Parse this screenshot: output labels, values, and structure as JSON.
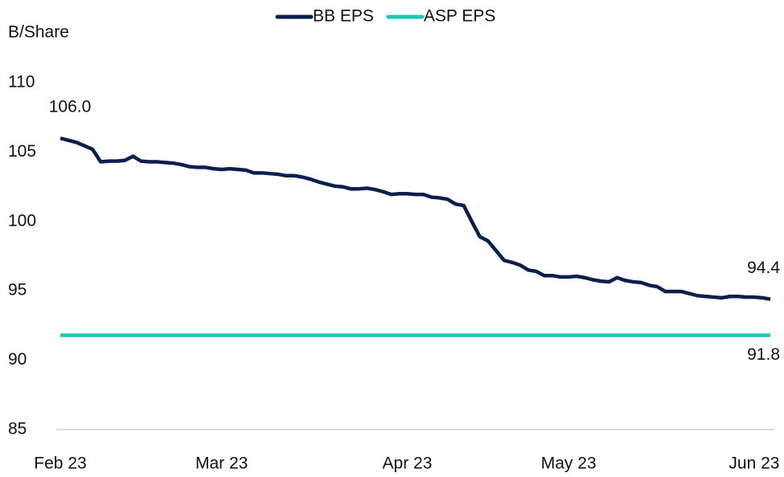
{
  "chart_data": {
    "type": "line",
    "y_label": "B/Share",
    "categories": [
      "Feb 23",
      null,
      null,
      null,
      null,
      null,
      null,
      null,
      null,
      null,
      null,
      null,
      null,
      null,
      null,
      null,
      null,
      null,
      null,
      null,
      "Mar 23",
      null,
      null,
      null,
      null,
      null,
      null,
      null,
      null,
      null,
      null,
      null,
      null,
      null,
      null,
      null,
      null,
      null,
      null,
      null,
      null,
      null,
      null,
      "Apr 23",
      null,
      null,
      null,
      null,
      null,
      null,
      null,
      null,
      null,
      null,
      null,
      null,
      null,
      null,
      null,
      null,
      null,
      null,
      null,
      "May 23",
      null,
      null,
      null,
      null,
      null,
      null,
      null,
      null,
      null,
      null,
      null,
      null,
      null,
      null,
      null,
      null,
      null,
      null,
      null,
      null,
      null,
      null,
      "Jun 23",
      null,
      null
    ],
    "series": [
      {
        "name": "BB EPS",
        "color": "#0b1f4f",
        "values": [
          106.0,
          105.85,
          105.7,
          105.45,
          105.2,
          104.3,
          104.35,
          104.35,
          104.4,
          104.7,
          104.35,
          104.3,
          104.3,
          104.25,
          104.2,
          104.1,
          103.95,
          103.9,
          103.9,
          103.8,
          103.75,
          103.8,
          103.75,
          103.7,
          103.5,
          103.5,
          103.45,
          103.4,
          103.3,
          103.3,
          103.2,
          103.05,
          102.85,
          102.7,
          102.55,
          102.5,
          102.35,
          102.35,
          102.4,
          102.3,
          102.15,
          101.95,
          102.0,
          102.0,
          101.95,
          101.95,
          101.75,
          101.7,
          101.6,
          101.25,
          101.15,
          100.0,
          98.9,
          98.6,
          97.9,
          97.2,
          97.05,
          96.85,
          96.5,
          96.4,
          96.1,
          96.1,
          96.0,
          96.0,
          96.05,
          95.95,
          95.8,
          95.7,
          95.65,
          95.95,
          95.75,
          95.65,
          95.6,
          95.4,
          95.3,
          94.95,
          94.95,
          94.95,
          94.8,
          94.65,
          94.6,
          94.55,
          94.5,
          94.6,
          94.6,
          94.55,
          94.55,
          94.5,
          94.4
        ],
        "value_labels": [
          "106.0",
          null,
          null,
          null,
          null,
          null,
          null,
          null,
          null,
          null,
          null,
          null,
          null,
          null,
          null,
          null,
          null,
          null,
          null,
          null,
          null,
          null,
          null,
          null,
          null,
          null,
          null,
          null,
          null,
          null,
          null,
          null,
          null,
          null,
          null,
          null,
          null,
          null,
          null,
          null,
          null,
          null,
          null,
          null,
          null,
          null,
          null,
          null,
          null,
          null,
          null,
          null,
          null,
          null,
          null,
          null,
          null,
          null,
          null,
          null,
          null,
          null,
          null,
          null,
          null,
          null,
          null,
          null,
          null,
          null,
          null,
          null,
          null,
          null,
          null,
          null,
          null,
          null,
          null,
          null,
          null,
          null,
          null,
          null,
          null,
          null,
          null,
          null,
          "94.4"
        ]
      },
      {
        "name": "ASP EPS",
        "color": "#1cc7b5",
        "values": [
          91.8,
          91.8,
          91.8,
          91.8,
          91.8,
          91.8,
          91.8,
          91.8,
          91.8,
          91.8,
          91.8,
          91.8,
          91.8,
          91.8,
          91.8,
          91.8,
          91.8,
          91.8,
          91.8,
          91.8,
          91.8,
          91.8,
          91.8,
          91.8,
          91.8,
          91.8,
          91.8,
          91.8,
          91.8,
          91.8,
          91.8,
          91.8,
          91.8,
          91.8,
          91.8,
          91.8,
          91.8,
          91.8,
          91.8,
          91.8,
          91.8,
          91.8,
          91.8,
          91.8,
          91.8,
          91.8,
          91.8,
          91.8,
          91.8,
          91.8,
          91.8,
          91.8,
          91.8,
          91.8,
          91.8,
          91.8,
          91.8,
          91.8,
          91.8,
          91.8,
          91.8,
          91.8,
          91.8,
          91.8,
          91.8,
          91.8,
          91.8,
          91.8,
          91.8,
          91.8,
          91.8,
          91.8,
          91.8,
          91.8,
          91.8,
          91.8,
          91.8,
          91.8,
          91.8,
          91.8,
          91.8,
          91.8,
          91.8,
          91.8,
          91.8,
          91.8,
          91.8,
          91.8,
          91.8
        ],
        "value_labels": [
          null,
          null,
          null,
          null,
          null,
          null,
          null,
          null,
          null,
          null,
          null,
          null,
          null,
          null,
          null,
          null,
          null,
          null,
          null,
          null,
          null,
          null,
          null,
          null,
          null,
          null,
          null,
          null,
          null,
          null,
          null,
          null,
          null,
          null,
          null,
          null,
          null,
          null,
          null,
          null,
          null,
          null,
          null,
          null,
          null,
          null,
          null,
          null,
          null,
          null,
          null,
          null,
          null,
          null,
          null,
          null,
          null,
          null,
          null,
          null,
          null,
          null,
          null,
          null,
          null,
          null,
          null,
          null,
          null,
          null,
          null,
          null,
          null,
          null,
          null,
          null,
          null,
          null,
          null,
          null,
          null,
          null,
          null,
          null,
          null,
          null,
          null,
          null,
          "91.8"
        ]
      }
    ],
    "ylim": [
      85,
      110
    ],
    "yticks": [
      85,
      90,
      95,
      100,
      105,
      110
    ],
    "grid": false,
    "legend": "top"
  }
}
